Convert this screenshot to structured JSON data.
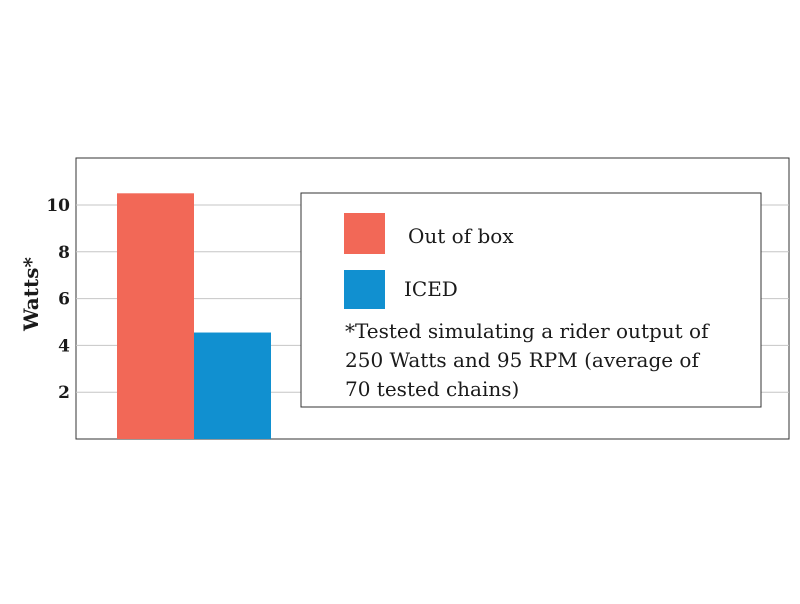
{
  "chart_data": {
    "type": "bar",
    "categories": [
      ""
    ],
    "series": [
      {
        "name": "Out of box",
        "values": [
          10.5
        ],
        "color": "#f26857"
      },
      {
        "name": "ICED",
        "values": [
          4.55
        ],
        "color": "#1190d0"
      }
    ],
    "ylabel": "Watts*",
    "yticks": [
      2,
      4,
      6,
      8,
      10
    ],
    "ylim": [
      0,
      12
    ],
    "grid": true,
    "legend": "top-right",
    "note": [
      "*Tested simulating a rider output of",
      "250 Watts and 95 RPM (average of",
      "70 tested chains)"
    ]
  }
}
